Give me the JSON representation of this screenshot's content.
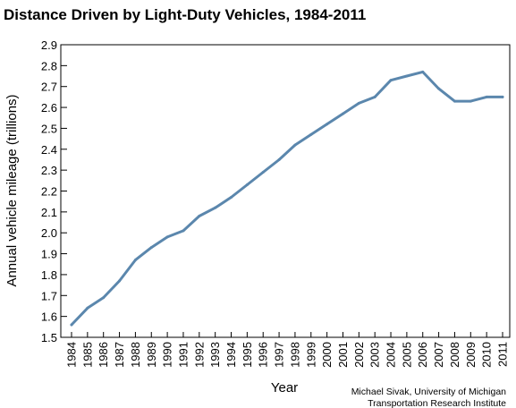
{
  "chart_data": {
    "type": "line",
    "title": "Distance Driven by Light-Duty Vehicles, 1984-2011",
    "xlabel": "Year",
    "ylabel": "Annual vehicle mileage (trillions)",
    "ylim": [
      1.5,
      2.9
    ],
    "yticks": [
      "1.5",
      "1.6",
      "1.7",
      "1.8",
      "1.9",
      "2.0",
      "2.1",
      "2.2",
      "2.3",
      "2.4",
      "2.5",
      "2.6",
      "2.7",
      "2.8",
      "2.9"
    ],
    "x": [
      "1984",
      "1985",
      "1986",
      "1987",
      "1988",
      "1989",
      "1990",
      "1991",
      "1992",
      "1993",
      "1994",
      "1995",
      "1996",
      "1997",
      "1998",
      "1999",
      "2000",
      "2001",
      "2002",
      "2003",
      "2004",
      "2005",
      "2006",
      "2007",
      "2008",
      "2009",
      "2010",
      "2011"
    ],
    "series": [
      {
        "values": [
          1.56,
          1.64,
          1.69,
          1.77,
          1.87,
          1.93,
          1.98,
          2.01,
          2.08,
          2.12,
          2.17,
          2.23,
          2.29,
          2.35,
          2.42,
          2.47,
          2.52,
          2.57,
          2.62,
          2.65,
          2.73,
          2.75,
          2.77,
          2.69,
          2.63,
          2.63,
          2.65,
          2.65
        ],
        "color": "#5b87ad"
      }
    ],
    "grid": false,
    "legend": "none",
    "credit": [
      "Michael Sivak, University of Michigan",
      "Transportation Research Institute"
    ]
  }
}
